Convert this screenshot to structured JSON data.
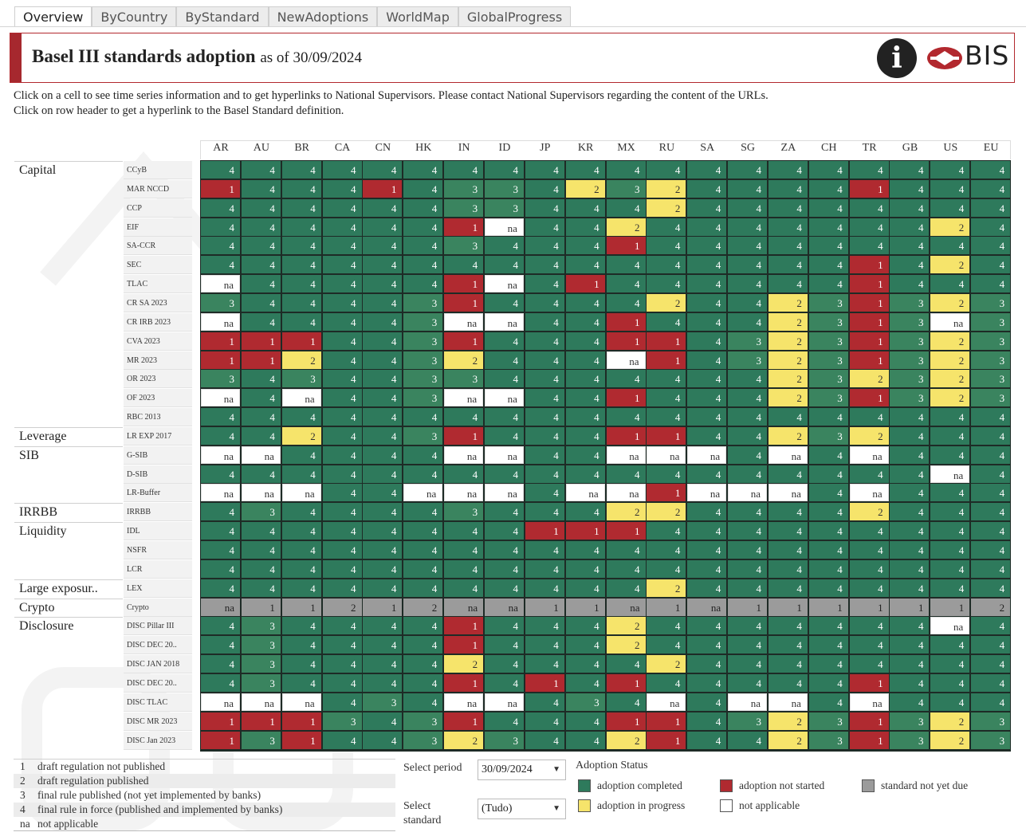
{
  "tabs": [
    "Overview",
    "ByCountry",
    "ByStandard",
    "NewAdoptions",
    "WorldMap",
    "GlobalProgress"
  ],
  "header": {
    "title": "Basel III standards adoption",
    "subtitle": "as of 30/09/2024",
    "brand": "BIS",
    "info_icon": "info-icon"
  },
  "instructions": [
    "Click on a cell to see time series information and to get hyperlinks to National Supervisors. Please contact National Supervisors regarding the content of the URLs.",
    "Click on row header to get a hyperlink to the Basel Standard definition."
  ],
  "countries": [
    "AR",
    "AU",
    "BR",
    "CA",
    "CN",
    "HK",
    "IN",
    "ID",
    "JP",
    "KR",
    "MX",
    "RU",
    "SA",
    "SG",
    "ZA",
    "CH",
    "TR",
    "GB",
    "US",
    "EU"
  ],
  "categories": [
    {
      "label": "Capital",
      "row": 0
    },
    {
      "label": "Leverage",
      "row": 14
    },
    {
      "label": "SIB",
      "row": 15
    },
    {
      "label": "IRRBB",
      "row": 18
    },
    {
      "label": "Liquidity",
      "row": 19
    },
    {
      "label": "Large exposur..",
      "row": 22
    },
    {
      "label": "Crypto",
      "row": 23
    },
    {
      "label": "Disclosure",
      "row": 24
    }
  ],
  "rows": [
    {
      "label": "CCyB",
      "values": [
        "4",
        "4",
        "4",
        "4",
        "4",
        "4",
        "4",
        "4",
        "4",
        "4",
        "4",
        "4",
        "4",
        "4",
        "4",
        "4",
        "4",
        "4",
        "4",
        "4"
      ]
    },
    {
      "label": "MAR NCCD",
      "values": [
        "1",
        "4",
        "4",
        "4",
        "1",
        "4",
        "3",
        "3",
        "4",
        "2",
        "3",
        "2",
        "4",
        "4",
        "4",
        "4",
        "1",
        "4",
        "4",
        "4"
      ]
    },
    {
      "label": "CCP",
      "values": [
        "4",
        "4",
        "4",
        "4",
        "4",
        "4",
        "3",
        "3",
        "4",
        "4",
        "4",
        "2",
        "4",
        "4",
        "4",
        "4",
        "4",
        "4",
        "4",
        "4"
      ]
    },
    {
      "label": "EIF",
      "values": [
        "4",
        "4",
        "4",
        "4",
        "4",
        "4",
        "1",
        "na",
        "4",
        "4",
        "2",
        "4",
        "4",
        "4",
        "4",
        "4",
        "4",
        "4",
        "2",
        "4"
      ]
    },
    {
      "label": "SA-CCR",
      "values": [
        "4",
        "4",
        "4",
        "4",
        "4",
        "4",
        "3",
        "4",
        "4",
        "4",
        "1",
        "4",
        "4",
        "4",
        "4",
        "4",
        "4",
        "4",
        "4",
        "4"
      ]
    },
    {
      "label": "SEC",
      "values": [
        "4",
        "4",
        "4",
        "4",
        "4",
        "4",
        "4",
        "4",
        "4",
        "4",
        "4",
        "4",
        "4",
        "4",
        "4",
        "4",
        "1",
        "4",
        "2",
        "4"
      ]
    },
    {
      "label": "TLAC",
      "values": [
        "na",
        "4",
        "4",
        "4",
        "4",
        "4",
        "1",
        "na",
        "4",
        "1",
        "4",
        "4",
        "4",
        "4",
        "4",
        "4",
        "1",
        "4",
        "4",
        "4"
      ]
    },
    {
      "label": "CR SA 2023",
      "values": [
        "3",
        "4",
        "4",
        "4",
        "4",
        "3",
        "1",
        "4",
        "4",
        "4",
        "4",
        "2",
        "4",
        "4",
        "2",
        "3",
        "1",
        "3",
        "2",
        "3"
      ]
    },
    {
      "label": "CR IRB 2023",
      "values": [
        "na",
        "4",
        "4",
        "4",
        "4",
        "3",
        "na",
        "na",
        "4",
        "4",
        "1",
        "4",
        "4",
        "4",
        "2",
        "3",
        "1",
        "3",
        "na",
        "3"
      ]
    },
    {
      "label": "CVA 2023",
      "values": [
        "1",
        "1",
        "1",
        "4",
        "4",
        "3",
        "1",
        "4",
        "4",
        "4",
        "1",
        "1",
        "4",
        "3",
        "2",
        "3",
        "1",
        "3",
        "2",
        "3"
      ]
    },
    {
      "label": "MR 2023",
      "values": [
        "1",
        "1",
        "2",
        "4",
        "4",
        "3",
        "2",
        "4",
        "4",
        "4",
        "na",
        "1",
        "4",
        "3",
        "2",
        "3",
        "1",
        "3",
        "2",
        "3"
      ]
    },
    {
      "label": "OR 2023",
      "values": [
        "3",
        "4",
        "3",
        "4",
        "4",
        "3",
        "3",
        "4",
        "4",
        "4",
        "4",
        "4",
        "4",
        "4",
        "2",
        "3",
        "2",
        "3",
        "2",
        "3"
      ]
    },
    {
      "label": "OF 2023",
      "values": [
        "na",
        "4",
        "na",
        "4",
        "4",
        "3",
        "na",
        "na",
        "4",
        "4",
        "1",
        "4",
        "4",
        "4",
        "2",
        "3",
        "1",
        "3",
        "2",
        "3"
      ]
    },
    {
      "label": "RBC 2013",
      "values": [
        "4",
        "4",
        "4",
        "4",
        "4",
        "4",
        "4",
        "4",
        "4",
        "4",
        "4",
        "4",
        "4",
        "4",
        "4",
        "4",
        "4",
        "4",
        "4",
        "4"
      ]
    },
    {
      "label": "LR EXP 2017",
      "values": [
        "4",
        "4",
        "2",
        "4",
        "4",
        "3",
        "1",
        "4",
        "4",
        "4",
        "1",
        "1",
        "4",
        "4",
        "2",
        "3",
        "2",
        "4",
        "4",
        "4"
      ]
    },
    {
      "label": "G-SIB",
      "values": [
        "na",
        "na",
        "4",
        "4",
        "4",
        "4",
        "na",
        "na",
        "4",
        "4",
        "na",
        "na",
        "na",
        "4",
        "na",
        "4",
        "na",
        "4",
        "4",
        "4"
      ]
    },
    {
      "label": "D-SIB",
      "values": [
        "4",
        "4",
        "4",
        "4",
        "4",
        "4",
        "4",
        "4",
        "4",
        "4",
        "4",
        "4",
        "4",
        "4",
        "4",
        "4",
        "4",
        "4",
        "na",
        "4"
      ]
    },
    {
      "label": "LR-Buffer",
      "values": [
        "na",
        "na",
        "na",
        "4",
        "4",
        "na",
        "na",
        "na",
        "4",
        "na",
        "na",
        "1",
        "na",
        "na",
        "na",
        "4",
        "na",
        "4",
        "4",
        "4"
      ]
    },
    {
      "label": "IRRBB",
      "values": [
        "4",
        "3",
        "4",
        "4",
        "4",
        "4",
        "3",
        "4",
        "4",
        "4",
        "2",
        "2",
        "4",
        "4",
        "4",
        "4",
        "2",
        "4",
        "4",
        "4"
      ]
    },
    {
      "label": "IDL",
      "values": [
        "4",
        "4",
        "4",
        "4",
        "4",
        "4",
        "4",
        "4",
        "1",
        "1",
        "1",
        "4",
        "4",
        "4",
        "4",
        "4",
        "4",
        "4",
        "4",
        "4"
      ]
    },
    {
      "label": "NSFR",
      "values": [
        "4",
        "4",
        "4",
        "4",
        "4",
        "4",
        "4",
        "4",
        "4",
        "4",
        "4",
        "4",
        "4",
        "4",
        "4",
        "4",
        "4",
        "4",
        "4",
        "4"
      ]
    },
    {
      "label": "LCR",
      "values": [
        "4",
        "4",
        "4",
        "4",
        "4",
        "4",
        "4",
        "4",
        "4",
        "4",
        "4",
        "4",
        "4",
        "4",
        "4",
        "4",
        "4",
        "4",
        "4",
        "4"
      ]
    },
    {
      "label": "LEX",
      "values": [
        "4",
        "4",
        "4",
        "4",
        "4",
        "4",
        "4",
        "4",
        "4",
        "4",
        "4",
        "2",
        "4",
        "4",
        "4",
        "4",
        "4",
        "4",
        "4",
        "4"
      ]
    },
    {
      "label": "Crypto",
      "values": [
        "na",
        "1",
        "1",
        "2",
        "1",
        "2",
        "na",
        "na",
        "1",
        "1",
        "na",
        "1",
        "na",
        "1",
        "1",
        "1",
        "1",
        "1",
        "1",
        "2"
      ],
      "gray": true
    },
    {
      "label": "DISC Pillar III",
      "values": [
        "4",
        "3",
        "4",
        "4",
        "4",
        "4",
        "1",
        "4",
        "4",
        "4",
        "2",
        "4",
        "4",
        "4",
        "4",
        "4",
        "4",
        "4",
        "na",
        "4"
      ]
    },
    {
      "label": "DISC DEC 20..",
      "values": [
        "4",
        "3",
        "4",
        "4",
        "4",
        "4",
        "1",
        "4",
        "4",
        "4",
        "2",
        "4",
        "4",
        "4",
        "4",
        "4",
        "4",
        "4",
        "4",
        "4"
      ]
    },
    {
      "label": "DISC JAN 2018",
      "values": [
        "4",
        "3",
        "4",
        "4",
        "4",
        "4",
        "2",
        "4",
        "4",
        "4",
        "4",
        "2",
        "4",
        "4",
        "4",
        "4",
        "4",
        "4",
        "4",
        "4"
      ]
    },
    {
      "label": "DISC DEC 20..",
      "values": [
        "4",
        "3",
        "4",
        "4",
        "4",
        "4",
        "1",
        "4",
        "1",
        "4",
        "1",
        "4",
        "4",
        "4",
        "4",
        "4",
        "1",
        "4",
        "4",
        "4"
      ]
    },
    {
      "label": "DISC TLAC",
      "values": [
        "na",
        "na",
        "na",
        "4",
        "3",
        "4",
        "na",
        "na",
        "4",
        "3",
        "4",
        "na",
        "4",
        "na",
        "na",
        "4",
        "na",
        "4",
        "4",
        "4"
      ]
    },
    {
      "label": "DISC MR 2023",
      "values": [
        "1",
        "1",
        "1",
        "3",
        "4",
        "3",
        "1",
        "4",
        "4",
        "4",
        "1",
        "1",
        "4",
        "3",
        "2",
        "3",
        "1",
        "3",
        "2",
        "3"
      ]
    },
    {
      "label": "DISC Jan 2023",
      "values": [
        "1",
        "3",
        "1",
        "4",
        "4",
        "3",
        "2",
        "3",
        "4",
        "4",
        "2",
        "1",
        "4",
        "4",
        "2",
        "3",
        "1",
        "3",
        "2",
        "3"
      ]
    }
  ],
  "legend": [
    {
      "code": "1",
      "text": "draft regulation not published"
    },
    {
      "code": "2",
      "text": "draft regulation published"
    },
    {
      "code": "3",
      "text": "final rule published (not yet implemented by banks)"
    },
    {
      "code": "4",
      "text": "final rule in force (published and implemented by banks)"
    },
    {
      "code": "na",
      "text": "not applicable"
    }
  ],
  "controls": {
    "period_label": "Select period",
    "period_value": "30/09/2024",
    "standard_label_1": "Select",
    "standard_label_2": "standard",
    "standard_value": "(Tudo)"
  },
  "adoption_status": {
    "title": "Adoption Status",
    "items": [
      {
        "label": "adoption completed",
        "color": "#2e7a5c"
      },
      {
        "label": "adoption not started",
        "color": "#b02a30"
      },
      {
        "label": "standard not yet due",
        "color": "#9b9b9b"
      },
      {
        "label": "adoption in progress",
        "color": "#f6e46b"
      },
      {
        "label": "not applicable",
        "color": "#ffffff"
      }
    ]
  },
  "colors": {
    "complete": "#2e7a5c",
    "progress": "#f6e46b",
    "not_started": "#b02a30",
    "not_due": "#9b9b9b",
    "brand": "#a6282e"
  }
}
